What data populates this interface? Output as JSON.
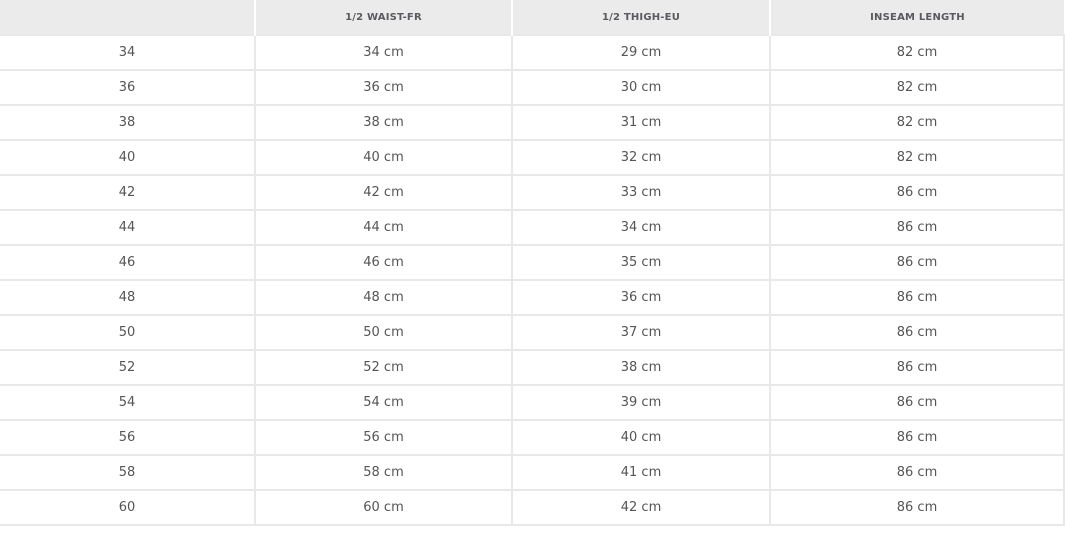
{
  "table": {
    "headers": [
      "",
      "1/2 WAIST-FR",
      "1/2 THIGH-EU",
      "INSEAM LENGTH"
    ],
    "rows": [
      [
        "34",
        "34 cm",
        "29 cm",
        "82 cm"
      ],
      [
        "36",
        "36 cm",
        "30 cm",
        "82 cm"
      ],
      [
        "38",
        "38 cm",
        "31 cm",
        "82 cm"
      ],
      [
        "40",
        "40 cm",
        "32 cm",
        "82 cm"
      ],
      [
        "42",
        "42 cm",
        "33 cm",
        "86 cm"
      ],
      [
        "44",
        "44 cm",
        "34 cm",
        "86 cm"
      ],
      [
        "46",
        "46 cm",
        "35 cm",
        "86 cm"
      ],
      [
        "48",
        "48 cm",
        "36 cm",
        "86 cm"
      ],
      [
        "50",
        "50 cm",
        "37 cm",
        "86 cm"
      ],
      [
        "52",
        "52 cm",
        "38 cm",
        "86 cm"
      ],
      [
        "54",
        "54 cm",
        "39 cm",
        "86 cm"
      ],
      [
        "56",
        "56 cm",
        "40 cm",
        "86 cm"
      ],
      [
        "58",
        "58 cm",
        "41 cm",
        "86 cm"
      ],
      [
        "60",
        "60 cm",
        "42 cm",
        "86 cm"
      ]
    ]
  }
}
